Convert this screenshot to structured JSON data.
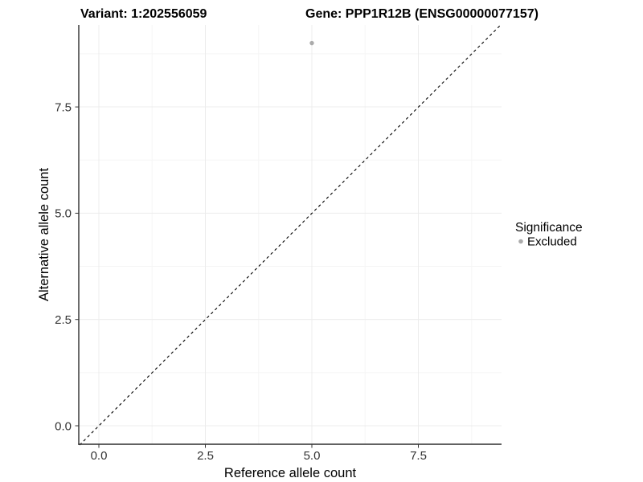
{
  "figure": {
    "title_left": "Variant: 1:202556059",
    "title_right": "Gene: PPP1R12B (ENSG00000077157)"
  },
  "chart_data": {
    "type": "scatter",
    "title": "Variant: 1:202556059   Gene: PPP1R12B (ENSG00000077157)",
    "xlabel": "Reference allele count",
    "ylabel": "Alternative allele count",
    "xlim": [
      -0.45,
      9.45
    ],
    "ylim": [
      -0.45,
      9.45
    ],
    "x_ticks": [
      0,
      2.5,
      5,
      7.5
    ],
    "y_ticks": [
      0,
      2.5,
      5,
      7.5
    ],
    "x_tick_labels": [
      "0.0",
      "2.5",
      "5.0",
      "7.5"
    ],
    "y_tick_labels": [
      "0.0",
      "2.5",
      "5.0",
      "7.5"
    ],
    "minor_ticks": [
      1.25,
      3.75,
      6.25,
      8.75
    ],
    "grid": "major and minor, light gray on white",
    "series": [
      {
        "name": "Excluded",
        "marker": "circle",
        "color": "#ababab",
        "points": [
          {
            "x": 5,
            "y": 9
          }
        ]
      }
    ],
    "reference_line": {
      "kind": "identity y = x",
      "style": "dashed",
      "color": "#000000",
      "from": [
        -0.45,
        -0.45
      ],
      "to": [
        9.45,
        9.45
      ]
    },
    "legend": {
      "title": "Significance",
      "position": "right",
      "items": [
        {
          "label": "Excluded",
          "marker_color": "#ababab"
        }
      ]
    }
  },
  "colors": {
    "background": "#ffffff",
    "axis_line": "#2e2e2e",
    "tick_label": "#333333",
    "grid_major": "#ececec",
    "grid_minor": "#f5f5f5",
    "point": "#ababab",
    "title": "#000000"
  }
}
